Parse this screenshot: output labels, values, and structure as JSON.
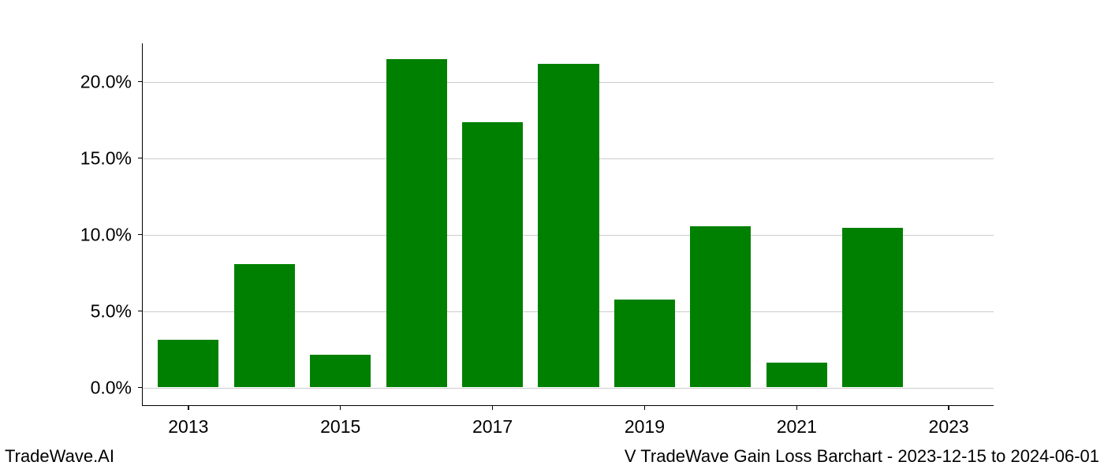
{
  "chart": {
    "type": "bar",
    "background_color": "#ffffff",
    "grid_color": "#cccccc",
    "axis_color": "#000000",
    "bar_color": "#008000",
    "label_fontsize": 23,
    "footer_fontsize": 22,
    "ylim_min": -1.2,
    "ylim_max": 22.5,
    "yticks": [
      {
        "value": 0,
        "label": "0.0%"
      },
      {
        "value": 5,
        "label": "5.0%"
      },
      {
        "value": 10,
        "label": "10.0%"
      },
      {
        "value": 15,
        "label": "15.0%"
      },
      {
        "value": 20,
        "label": "20.0%"
      }
    ],
    "xticks": [
      {
        "year": 2013,
        "label": "2013"
      },
      {
        "year": 2015,
        "label": "2015"
      },
      {
        "year": 2017,
        "label": "2017"
      },
      {
        "year": 2019,
        "label": "2019"
      },
      {
        "year": 2021,
        "label": "2021"
      },
      {
        "year": 2023,
        "label": "2023"
      }
    ],
    "x_min_year": 2012.4,
    "x_max_year": 2023.6,
    "bar_width_years": 0.8,
    "bars": [
      {
        "year": 2013,
        "value": 3.1
      },
      {
        "year": 2014,
        "value": 8.0
      },
      {
        "year": 2015,
        "value": 2.1
      },
      {
        "year": 2016,
        "value": 21.4
      },
      {
        "year": 2017,
        "value": 17.3
      },
      {
        "year": 2018,
        "value": 21.1
      },
      {
        "year": 2019,
        "value": 5.7
      },
      {
        "year": 2020,
        "value": 10.5
      },
      {
        "year": 2021,
        "value": 1.6
      },
      {
        "year": 2022,
        "value": 10.4
      },
      {
        "year": 2023,
        "value": 0.0
      }
    ]
  },
  "footer": {
    "left": "TradeWave.AI",
    "right": "V TradeWave Gain Loss Barchart - 2023-12-15 to 2024-06-01"
  }
}
